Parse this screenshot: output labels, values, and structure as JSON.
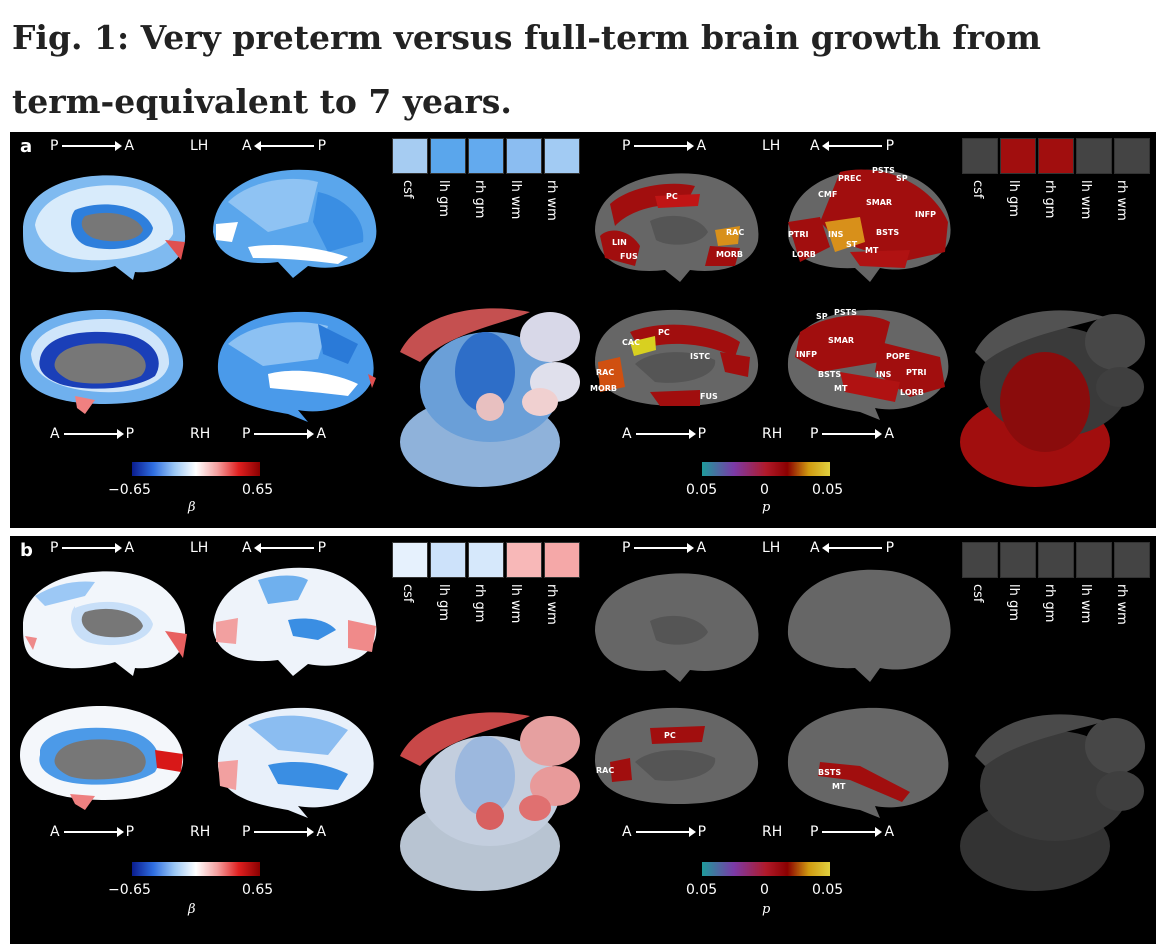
{
  "caption": "Fig. 1: Very preterm versus full-term brain growth from term-equivalent to 7 years.",
  "orientation": {
    "P": "P",
    "A": "A",
    "LH": "LH",
    "RH": "RH"
  },
  "beta_scale": {
    "min": "−0.65",
    "max": "0.65",
    "symbol": "β"
  },
  "p_scale": {
    "left": "0.05",
    "mid": "0",
    "right": "0.05",
    "symbol": "p"
  },
  "cell_labels": [
    "csf",
    "lh gm",
    "rh gm",
    "lh wm",
    "rh wm"
  ],
  "colors": {
    "beta_colormap": [
      "#0a1c8f",
      "#2f6ee0",
      "#9cc8f5",
      "#ffffff",
      "#f5a0a0",
      "#e02020",
      "#8a0000"
    ],
    "p_colormap": [
      "#1e9b9b",
      "#7b3aa8",
      "#b01a2a",
      "#8a0000",
      "#d09a10",
      "#e0d040"
    ],
    "sig_red": "#a10e0e",
    "nonsig_gray": "#444444"
  },
  "panels": [
    {
      "label": "a",
      "beta_cells": [
        "#a6ccf2",
        "#5aa6ec",
        "#63aaee",
        "#8bbdf1",
        "#a2cbf3"
      ],
      "p_cells": [
        "#444444",
        "#a10e0e",
        "#a10e0e",
        "#444444",
        "#444444"
      ],
      "roi_labels": [
        "PC",
        "RAC",
        "LIN",
        "FUS",
        "MORB",
        "PREC",
        "PSTS",
        "SP",
        "CMF",
        "SMAR",
        "INFP",
        "PTRI",
        "INS",
        "BSTS",
        "ST",
        "LORB",
        "MT",
        "CAC",
        "ISTC",
        "POPE"
      ]
    },
    {
      "label": "b",
      "beta_cells": [
        "#e6f1fd",
        "#cde2fa",
        "#d6e8fb",
        "#f8b8b8",
        "#f5a8a8"
      ],
      "p_cells": [
        "#444444",
        "#444444",
        "#444444",
        "#444444",
        "#444444"
      ],
      "roi_labels": [
        "PC",
        "RAC",
        "BSTS",
        "MT"
      ]
    }
  ]
}
